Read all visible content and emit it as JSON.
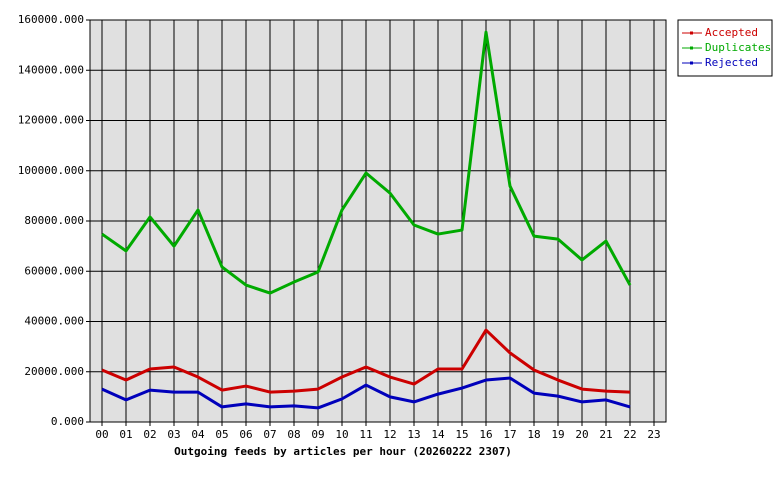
{
  "chart_data": {
    "type": "line",
    "title": "Outgoing feeds by articles per hour (20260222 2307)",
    "categories": [
      "00",
      "01",
      "02",
      "03",
      "04",
      "05",
      "06",
      "07",
      "08",
      "09",
      "10",
      "11",
      "12",
      "13",
      "14",
      "15",
      "16",
      "17",
      "18",
      "19",
      "20",
      "21",
      "22",
      "23"
    ],
    "series": [
      {
        "name": "Accepted",
        "color": "#cc0000",
        "values": [
          20700,
          16700,
          21100,
          21900,
          17900,
          12700,
          14300,
          11900,
          12300,
          13100,
          17900,
          21900,
          17900,
          15100,
          21100,
          21100,
          36600,
          27500,
          20700,
          16700,
          13100,
          12300,
          11900,
          null
        ]
      },
      {
        "name": "Duplicates",
        "color": "#00aa00",
        "values": [
          74800,
          68100,
          81600,
          70000,
          84400,
          61700,
          54500,
          51300,
          55700,
          59700,
          84400,
          99100,
          91100,
          78400,
          74800,
          76400,
          155200,
          93900,
          74000,
          72800,
          64500,
          72000,
          54500,
          null
        ]
      },
      {
        "name": "Rejected",
        "color": "#0000bb",
        "values": [
          13100,
          8800,
          12700,
          11900,
          11900,
          6000,
          7200,
          6000,
          6400,
          5600,
          9200,
          14700,
          10000,
          8000,
          11100,
          13500,
          16700,
          17500,
          11500,
          10300,
          8000,
          8800,
          6000,
          null
        ]
      }
    ],
    "ylim": [
      0,
      160000
    ],
    "yticks": [
      {
        "value": 0,
        "label": "0.000"
      },
      {
        "value": 20000,
        "label": "20000.000"
      },
      {
        "value": 40000,
        "label": "40000.000"
      },
      {
        "value": 60000,
        "label": "60000.000"
      },
      {
        "value": 80000,
        "label": "80000.000"
      },
      {
        "value": 100000,
        "label": "100000.000"
      },
      {
        "value": 120000,
        "label": "120000.000"
      },
      {
        "value": 140000,
        "label": "140000.000"
      },
      {
        "value": 160000,
        "label": "160000.000"
      }
    ],
    "grid": true
  }
}
